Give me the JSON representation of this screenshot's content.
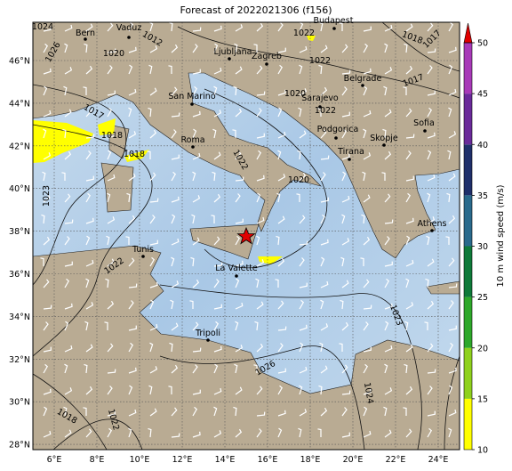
{
  "title": "Forecast of 2022021306 (f156)",
  "lat_ticks": [
    {
      "value": 28,
      "label": "28°N"
    },
    {
      "value": 30,
      "label": "30°N"
    },
    {
      "value": 32,
      "label": "32°N"
    },
    {
      "value": 34,
      "label": "34°N"
    },
    {
      "value": 36,
      "label": "36°N"
    },
    {
      "value": 38,
      "label": "38°N"
    },
    {
      "value": 40,
      "label": "40°N"
    },
    {
      "value": 42,
      "label": "42°N"
    },
    {
      "value": 44,
      "label": "44°N"
    },
    {
      "value": 46,
      "label": "46°N"
    }
  ],
  "lon_ticks": [
    {
      "value": 6,
      "label": "6°E"
    },
    {
      "value": 8,
      "label": "8°E"
    },
    {
      "value": 10,
      "label": "10°E"
    },
    {
      "value": 12,
      "label": "12°E"
    },
    {
      "value": 14,
      "label": "14°E"
    },
    {
      "value": 16,
      "label": "16°E"
    },
    {
      "value": 18,
      "label": "18°E"
    },
    {
      "value": 20,
      "label": "20°E"
    },
    {
      "value": 22,
      "label": "22°E"
    },
    {
      "value": 24,
      "label": "24°E"
    }
  ],
  "cities": [
    "Bern",
    "Vaduz",
    "Budapest",
    "Ljubljana",
    "Zagreb",
    "Belgrade",
    "San Marino",
    "Sarajevo",
    "Roma",
    "Podgorica",
    "Skopje",
    "Sofia",
    "Tirana",
    "Athens",
    "Tunis",
    "La Valette",
    "Tripoli"
  ],
  "isobar_labels": [
    "1024",
    "1026",
    "1020",
    "1012",
    "1022",
    "1022",
    "1018",
    "1017",
    "1020",
    "1022",
    "1017",
    "1017",
    "1018",
    "1018",
    "1022",
    "1020",
    "1023",
    "1022",
    "1023",
    "1026",
    "1024",
    "1018",
    "1022"
  ],
  "colorbar": {
    "label": "10 m wind speed (m/s)",
    "ticks": [
      10,
      15,
      20,
      25,
      30,
      35,
      40,
      45,
      50
    ],
    "colors": [
      "#ffff00",
      "#8fd11c",
      "#2ea82a",
      "#0f7a3a",
      "#2a6a8c",
      "#1f2f6a",
      "#6a2a9a",
      "#a83ab8"
    ],
    "extend_color": "#e00000"
  }
}
